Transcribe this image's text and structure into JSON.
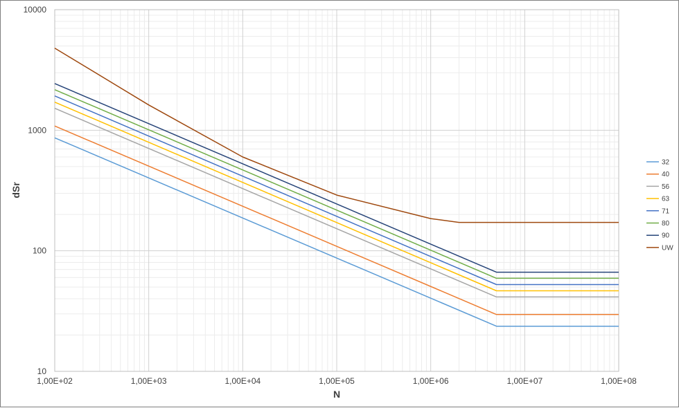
{
  "chart_data": {
    "type": "line",
    "title": "",
    "xlabel": "N",
    "ylabel": "dSr",
    "xscale": "log",
    "yscale": "log",
    "xlim": [
      100,
      100000000
    ],
    "ylim": [
      10,
      10000
    ],
    "grid": true,
    "legend_position": "right",
    "x_tick_labels": [
      "1,00E+02",
      "1,00E+03",
      "1,00E+04",
      "1,00E+05",
      "1,00E+06",
      "1,00E+07",
      "1,00E+08"
    ],
    "y_tick_labels": [
      "10",
      "100",
      "1000",
      "10000"
    ],
    "series": [
      {
        "name": "32",
        "color": "#5b9bd5",
        "x": [
          100,
          5000000,
          100000000
        ],
        "y": [
          865,
          23.7,
          23.7
        ]
      },
      {
        "name": "40",
        "color": "#ed7d31",
        "x": [
          100,
          5000000,
          100000000
        ],
        "y": [
          1085,
          29.6,
          29.6
        ]
      },
      {
        "name": "56",
        "color": "#a5a5a5",
        "x": [
          100,
          5000000,
          100000000
        ],
        "y": [
          1520,
          41.4,
          41.4
        ]
      },
      {
        "name": "63",
        "color": "#ffc000",
        "x": [
          100,
          5000000,
          100000000
        ],
        "y": [
          1710,
          46.6,
          46.6
        ]
      },
      {
        "name": "71",
        "color": "#4472c4",
        "x": [
          100,
          5000000,
          100000000
        ],
        "y": [
          1925,
          52.5,
          52.5
        ]
      },
      {
        "name": "80",
        "color": "#70ad47",
        "x": [
          100,
          5000000,
          100000000
        ],
        "y": [
          2170,
          59.2,
          59.2
        ]
      },
      {
        "name": "90",
        "color": "#264478",
        "x": [
          100,
          5000000,
          100000000
        ],
        "y": [
          2440,
          66.5,
          66.5
        ]
      },
      {
        "name": "UW",
        "color": "#9e480e",
        "x": [
          100,
          1000,
          10000,
          100000,
          1000000,
          2000000,
          100000000
        ],
        "y": [
          4800,
          1620,
          600,
          290,
          185,
          172,
          172
        ]
      }
    ]
  }
}
